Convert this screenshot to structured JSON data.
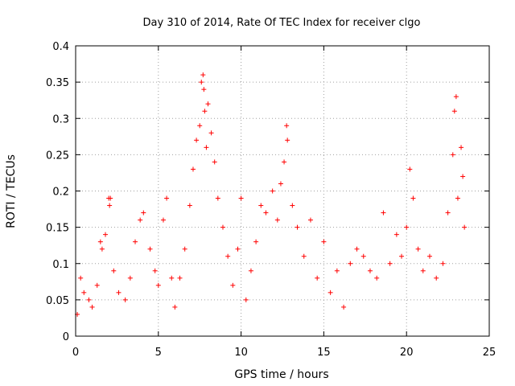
{
  "chart_data": {
    "type": "scatter",
    "title": "Day 310 of 2014, Rate Of TEC Index for receiver clgo",
    "xlabel": "GPS time / hours",
    "ylabel": "ROTI / TECUs",
    "xlim": [
      0,
      25
    ],
    "ylim": [
      0,
      0.4
    ],
    "xticks": [
      0,
      5,
      10,
      15,
      20,
      25
    ],
    "xtick_labels": [
      "0",
      "5",
      "10",
      "15",
      "20",
      "25"
    ],
    "yticks": [
      0,
      0.05,
      0.1,
      0.15,
      0.2,
      0.25,
      0.3,
      0.35,
      0.4
    ],
    "ytick_labels": [
      "0",
      "0.05",
      "0.1",
      "0.15",
      "0.2",
      "0.25",
      "0.3",
      "0.35",
      "0.4"
    ],
    "grid": true,
    "marker": "plus",
    "color": "#ff0000",
    "series": [
      {
        "name": "ROTI",
        "points": [
          [
            0.1,
            0.03
          ],
          [
            0.3,
            0.08
          ],
          [
            0.5,
            0.06
          ],
          [
            0.8,
            0.05
          ],
          [
            1.0,
            0.04
          ],
          [
            1.3,
            0.07
          ],
          [
            1.5,
            0.13
          ],
          [
            1.6,
            0.12
          ],
          [
            1.8,
            0.14
          ],
          [
            2.0,
            0.19
          ],
          [
            2.05,
            0.18
          ],
          [
            2.1,
            0.19
          ],
          [
            2.3,
            0.09
          ],
          [
            2.6,
            0.06
          ],
          [
            3.0,
            0.05
          ],
          [
            3.3,
            0.08
          ],
          [
            3.6,
            0.13
          ],
          [
            3.9,
            0.16
          ],
          [
            4.1,
            0.17
          ],
          [
            4.5,
            0.12
          ],
          [
            4.8,
            0.09
          ],
          [
            5.0,
            0.07
          ],
          [
            5.3,
            0.16
          ],
          [
            5.5,
            0.19
          ],
          [
            5.8,
            0.08
          ],
          [
            6.0,
            0.04
          ],
          [
            6.3,
            0.08
          ],
          [
            6.6,
            0.12
          ],
          [
            6.9,
            0.18
          ],
          [
            7.1,
            0.23
          ],
          [
            7.3,
            0.27
          ],
          [
            7.5,
            0.29
          ],
          [
            7.6,
            0.35
          ],
          [
            7.7,
            0.36
          ],
          [
            7.75,
            0.34
          ],
          [
            7.8,
            0.31
          ],
          [
            7.9,
            0.26
          ],
          [
            8.0,
            0.32
          ],
          [
            8.2,
            0.28
          ],
          [
            8.4,
            0.24
          ],
          [
            8.6,
            0.19
          ],
          [
            8.9,
            0.15
          ],
          [
            9.2,
            0.11
          ],
          [
            9.5,
            0.07
          ],
          [
            9.8,
            0.12
          ],
          [
            10.0,
            0.19
          ],
          [
            10.3,
            0.05
          ],
          [
            10.6,
            0.09
          ],
          [
            10.9,
            0.13
          ],
          [
            11.2,
            0.18
          ],
          [
            11.5,
            0.17
          ],
          [
            11.9,
            0.2
          ],
          [
            12.2,
            0.16
          ],
          [
            12.4,
            0.21
          ],
          [
            12.6,
            0.24
          ],
          [
            12.75,
            0.29
          ],
          [
            12.8,
            0.27
          ],
          [
            13.1,
            0.18
          ],
          [
            13.4,
            0.15
          ],
          [
            13.8,
            0.11
          ],
          [
            14.2,
            0.16
          ],
          [
            14.6,
            0.08
          ],
          [
            15.0,
            0.13
          ],
          [
            15.4,
            0.06
          ],
          [
            15.8,
            0.09
          ],
          [
            16.2,
            0.04
          ],
          [
            16.6,
            0.1
          ],
          [
            17.0,
            0.12
          ],
          [
            17.4,
            0.11
          ],
          [
            17.8,
            0.09
          ],
          [
            18.2,
            0.08
          ],
          [
            18.6,
            0.17
          ],
          [
            19.0,
            0.1
          ],
          [
            19.4,
            0.14
          ],
          [
            19.7,
            0.11
          ],
          [
            20.0,
            0.15
          ],
          [
            20.2,
            0.23
          ],
          [
            20.4,
            0.19
          ],
          [
            20.7,
            0.12
          ],
          [
            21.0,
            0.09
          ],
          [
            21.4,
            0.11
          ],
          [
            21.8,
            0.08
          ],
          [
            22.2,
            0.1
          ],
          [
            22.5,
            0.17
          ],
          [
            22.8,
            0.25
          ],
          [
            22.9,
            0.31
          ],
          [
            23.0,
            0.33
          ],
          [
            23.1,
            0.19
          ],
          [
            23.3,
            0.26
          ],
          [
            23.4,
            0.22
          ],
          [
            23.5,
            0.15
          ]
        ]
      }
    ]
  }
}
